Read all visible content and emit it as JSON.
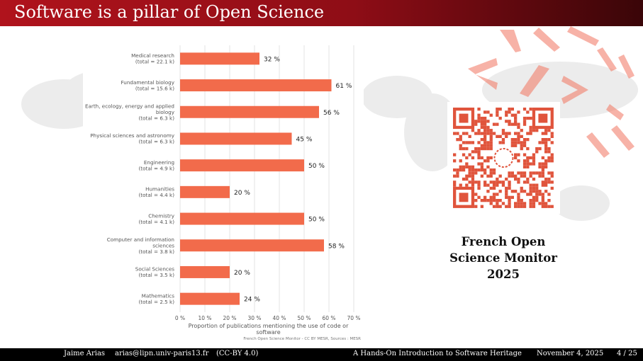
{
  "slide": {
    "title": "Software is a pillar of Open Science"
  },
  "side": {
    "monitor_line1": "French Open",
    "monitor_line2": "Science Monitor",
    "monitor_line3": "2025"
  },
  "footer": {
    "author": "Jaime Arias",
    "email": "arias@lipn.univ-paris13.fr",
    "license": "(CC-BY 4.0)",
    "talk": "A Hands-On Introduction to Software Heritage",
    "date": "November 4, 2025",
    "page": "4 / 25"
  },
  "chart_data": {
    "type": "bar",
    "orientation": "horizontal",
    "categories": [
      [
        "Medical research",
        "(total = 22.1 k)"
      ],
      [
        "Fundamental biology",
        "(total = 15.6 k)"
      ],
      [
        "Earth, ecology, energy and applied",
        "biology",
        "(total = 6.3 k)"
      ],
      [
        "Physical sciences and astronomy",
        "(total = 6.3 k)"
      ],
      [
        "Engineering",
        "(total = 4.9 k)"
      ],
      [
        "Humanities",
        "(total = 4.4 k)"
      ],
      [
        "Chemistry",
        "(total = 4.1 k)"
      ],
      [
        "Computer and information",
        "sciences",
        "(total = 3.8 k)"
      ],
      [
        "Social Sciences",
        "(total = 3.5 k)"
      ],
      [
        "Mathematics",
        "(total = 2.5 k)"
      ]
    ],
    "values": [
      32,
      61,
      56,
      45,
      50,
      20,
      50,
      58,
      20,
      24
    ],
    "value_labels": [
      "32 %",
      "61 %",
      "56 %",
      "45 %",
      "50 %",
      "20 %",
      "50 %",
      "58 %",
      "20 %",
      "24 %"
    ],
    "xticks": [
      "0 %",
      "10 %",
      "20 %",
      "30 %",
      "40 %",
      "50 %",
      "60 %",
      "70 %"
    ],
    "xlim": [
      0,
      70
    ],
    "xlabel": [
      "Proportion of publications mentioning the use of code or",
      "software"
    ],
    "source": "French Open Science Monitor - CC BY MESR, Sources : MESR",
    "bar_color": "#f26b4b",
    "grid": true
  }
}
